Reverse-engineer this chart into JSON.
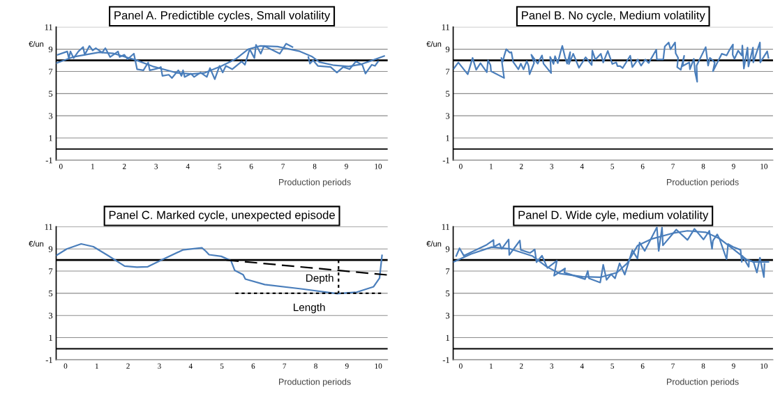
{
  "chart_data": [
    {
      "type": "line",
      "title": "Panel A. Predictible cycles, Small volatility",
      "xlabel": "Production periods",
      "ylabel": "€/un",
      "xlim": [
        -0.15,
        10.3
      ],
      "ylim": [
        -1,
        11
      ],
      "xticks": [
        0,
        1,
        2,
        3,
        4,
        5,
        6,
        7,
        8,
        9,
        10
      ],
      "yticks": [
        -1,
        1,
        3,
        5,
        7,
        9,
        11
      ],
      "grid": "y",
      "ref_lines": [
        {
          "axis": "y",
          "value": 0,
          "color": "#000000"
        },
        {
          "axis": "y",
          "value": 8,
          "color": "#000000"
        }
      ],
      "series": [
        {
          "color": "#4a7ebb",
          "x": [
            -0.1,
            0.2,
            0.25,
            0.3,
            0.4,
            0.55,
            0.7,
            0.75,
            0.9,
            1.0,
            1.1,
            1.3,
            1.4,
            1.55,
            1.8,
            1.85,
            2.0,
            2.1,
            2.3,
            2.4,
            2.6,
            2.75,
            2.8,
            3.1,
            3.15,
            3.2,
            3.4,
            3.5,
            3.7,
            3.8,
            3.85,
            3.9,
            4.1,
            4.2,
            4.4,
            4.6,
            4.7,
            4.85,
            4.9,
            5.0,
            5.1,
            5.2,
            5.4,
            5.7,
            5.8,
            5.95,
            6.1,
            6.15,
            6.3,
            6.4,
            6.9,
            7.1,
            7.3,
            7.6,
            7.8,
            7.85,
            7.95,
            8.1,
            8.5,
            8.7,
            8.9,
            9.1,
            9.3,
            9.5,
            9.6,
            9.8,
            9.9,
            10.0
          ],
          "values": [
            8.5,
            8.8,
            8.2,
            8.8,
            8.2,
            8.8,
            9.2,
            8.5,
            9.3,
            8.9,
            9.1,
            8.7,
            9.1,
            8.3,
            8.8,
            8.3,
            8.5,
            8.1,
            8.6,
            7.2,
            7.1,
            7.8,
            7.1,
            7.3,
            7.4,
            6.6,
            6.7,
            6.4,
            7.1,
            6.6,
            7.1,
            6.5,
            6.8,
            6.5,
            6.9,
            6.5,
            7.3,
            6.3,
            6.7,
            7.5,
            6.9,
            7.5,
            7.2,
            7.9,
            7.6,
            9.0,
            8.2,
            9.4,
            8.6,
            9.3,
            8.6,
            9.5,
            9.2,
            null,
            8.3,
            7.7,
            8.0,
            7.5,
            7.4,
            6.9,
            7.4,
            7.2,
            7.9,
            7.6,
            6.8,
            7.6,
            7.5,
            7.9
          ]
        },
        {
          "color": "#4a7ebb",
          "x": [
            -0.15,
            0.42,
            1.2,
            1.66,
            2.36,
            2.9,
            3.67,
            4.13,
            4.52,
            5.06,
            5.52,
            5.91,
            6.29,
            6.83,
            7.53,
            7.92,
            8.15,
            8.61,
            9.07,
            9.46,
            9.85,
            10.19
          ],
          "values": [
            7.74,
            8.33,
            8.72,
            8.62,
            8.03,
            7.45,
            6.86,
            6.77,
            6.86,
            7.49,
            8.13,
            9.01,
            9.3,
            9.24,
            8.81,
            8.33,
            7.84,
            7.55,
            7.45,
            7.64,
            8.03,
            8.39
          ]
        }
      ]
    },
    {
      "type": "line",
      "title": "Panel B. No cycle, Medium volatility",
      "xlabel": "Production periods",
      "ylabel": "€/un",
      "xlim": [
        -0.25,
        10.3
      ],
      "ylim": [
        -1,
        11
      ],
      "xticks": [
        0,
        1,
        2,
        3,
        4,
        5,
        6,
        7,
        8,
        9,
        10
      ],
      "yticks": [
        -1,
        1,
        3,
        5,
        7,
        9,
        11
      ],
      "grid": "y",
      "ref_lines": [
        {
          "axis": "y",
          "value": 0,
          "color": "#000000"
        },
        {
          "axis": "y",
          "value": 8,
          "color": "#000000"
        }
      ],
      "series": [
        {
          "color": "#4a7ebb",
          "x": [
            -0.23,
            -0.08,
            0.23,
            0.39,
            0.51,
            0.65,
            0.86,
            0.9,
            0.98,
            1.0,
            1.43,
            1.34,
            1.39,
            1.43,
            1.5,
            1.62,
            1.67,
            1.73,
            1.9,
            1.98,
            2.07,
            2.18,
            2.24,
            2.27,
            2.42,
            2.33,
            2.54,
            2.68,
            2.73,
            2.98,
            2.95,
            3.06,
            3.11,
            3.2,
            3.29,
            3.35,
            3.44,
            3.51,
            3.61,
            3.57,
            3.71,
            3.9,
            4.12,
            4.32,
            4.34,
            4.44,
            4.62,
            4.7,
            4.85,
            5.0,
            5.13,
            5.17,
            5.26,
            5.34,
            5.59,
            5.66,
            5.84,
            5.95,
            6.09,
            6.2,
            6.45,
            6.47,
            6.68,
            6.73,
            6.86,
            6.92,
            7.07,
            7.09,
            7.17,
            7.14,
            7.26,
            7.37,
            7.32,
            7.54,
            7.56,
            7.69,
            7.73,
            7.8,
            7.78,
            8.08,
            8.16,
            8.22,
            8.38,
            8.32,
            8.61,
            8.77,
            8.87,
            8.98,
            8.97,
            9.03,
            9.15,
            9.27,
            9.29,
            9.34,
            9.46,
            9.49,
            9.64,
            9.65,
            9.87,
            9.88,
            10.11,
            10.15
          ],
          "values": [
            7.26,
            7.81,
            6.74,
            8.22,
            7.15,
            7.74,
            6.93,
            8.0,
            7.57,
            7.02,
            6.41,
            8.22,
            7.89,
            8.37,
            9.0,
            8.69,
            8.74,
            7.85,
            7.19,
            7.7,
            7.19,
            7.93,
            7.48,
            6.74,
            7.76,
            8.5,
            7.7,
            8.44,
            7.7,
            6.85,
            8.31,
            7.67,
            8.37,
            7.74,
            8.74,
            9.3,
            8.28,
            7.7,
            8.74,
            7.67,
            8.59,
            7.33,
            8.28,
            7.57,
            8.87,
            8.07,
            8.59,
            7.81,
            8.85,
            7.67,
            7.81,
            7.48,
            7.48,
            7.3,
            8.41,
            7.39,
            8.07,
            7.52,
            8.07,
            7.76,
            8.96,
            8.07,
            8.07,
            9.24,
            9.61,
            9.0,
            9.61,
            8.63,
            8.22,
            7.39,
            7.15,
            8.41,
            7.48,
            7.81,
            7.2,
            8.13,
            6.93,
            6.07,
            7.52,
            9.19,
            7.52,
            8.22,
            7.81,
            7.02,
            8.59,
            8.44,
            8.96,
            9.43,
            8.5,
            8.13,
            8.87,
            8.44,
            9.33,
            7.26,
            9.15,
            7.44,
            9.15,
            7.81,
            9.61,
            7.81,
            8.81,
            8.22
          ]
        }
      ]
    },
    {
      "type": "line",
      "title": "Panel C. Marked cycle, unexpected episode",
      "xlabel": "Production periods",
      "ylabel": "€/un",
      "xlim": [
        -0.3,
        10.3
      ],
      "ylim": [
        -1,
        11
      ],
      "xticks": [
        0,
        1,
        2,
        3,
        4,
        5,
        6,
        7,
        8,
        9,
        10
      ],
      "yticks": [
        -1,
        1,
        3,
        5,
        7,
        9,
        11
      ],
      "grid": "y",
      "ref_lines": [
        {
          "axis": "y",
          "value": 0,
          "color": "#000000"
        },
        {
          "axis": "y",
          "value": 8,
          "color": "#000000"
        }
      ],
      "series": [
        {
          "color": "#4a7ebb",
          "x": [
            -0.29,
            0.04,
            0.5,
            0.89,
            1.35,
            1.89,
            2.28,
            2.63,
            3.05,
            3.75,
            4.36,
            4.48,
            4.59,
            4.98,
            5.29,
            5.41,
            5.68,
            5.75,
            6.37,
            7.53,
            8.69,
            9.31,
            9.85,
            10.04,
            10.12
          ],
          "values": [
            8.42,
            9.0,
            9.45,
            9.2,
            8.42,
            7.45,
            7.35,
            7.39,
            7.98,
            8.91,
            9.1,
            8.81,
            8.48,
            8.33,
            7.94,
            7.06,
            6.67,
            6.28,
            5.79,
            5.4,
            4.97,
            5.1,
            5.59,
            6.37,
            8.42
          ]
        },
        {
          "color": "#000000",
          "line_style": "dashed",
          "x": [
            5.14,
            10.3
          ],
          "values": [
            8.0,
            6.65
          ]
        },
        {
          "name": "Depth",
          "color": "#000000",
          "line_style": "dotted",
          "x": [
            8.73,
            8.73
          ],
          "values": [
            8.0,
            5.0
          ]
        },
        {
          "name": "Length",
          "color": "#000000",
          "line_style": "dotted",
          "x": [
            5.43,
            10.15
          ],
          "values": [
            5.0,
            5.0
          ]
        }
      ]
    },
    {
      "type": "line",
      "title": "Panel D. Wide cyle, medium volatility",
      "xlabel": "Production periods",
      "ylabel": "€/un",
      "xlim": [
        -0.25,
        10.3
      ],
      "ylim": [
        -1,
        11
      ],
      "xticks": [
        0,
        1,
        2,
        3,
        4,
        5,
        6,
        7,
        8,
        9,
        10
      ],
      "yticks": [
        -1,
        1,
        3,
        5,
        7,
        9,
        11
      ],
      "grid": "y",
      "ref_lines": [
        {
          "axis": "y",
          "value": 0,
          "color": "#000000"
        },
        {
          "axis": "y",
          "value": 8,
          "color": "#000000"
        }
      ],
      "series": [
        {
          "color": "#4a7ebb",
          "x": [
            -0.15,
            -0.04,
            0.1,
            0.86,
            1.08,
            1.09,
            1.28,
            1.35,
            1.58,
            1.6,
            1.95,
            1.98,
            2.29,
            2.44,
            2.5,
            2.68,
            2.86,
            3.17,
            3.08,
            3.44,
            3.42,
            4.1,
            4.19,
            4.23,
            4.6,
            4.7,
            4.81,
            4.96,
            5.09,
            5.24,
            5.41,
            5.66,
            5.83,
            5.9,
            6.07,
            6.47,
            6.53,
            6.64,
            6.67,
            7.11,
            7.48,
            7.71,
            8.01,
            8.2,
            8.29,
            8.32,
            8.46,
            8.53,
            8.77,
            8.82,
            8.98,
            9.23,
            9.27,
            9.29,
            9.5,
            9.51,
            9.66,
            9.77,
            9.87,
            10.0,
            10.02
          ],
          "values": [
            8.36,
            9.06,
            8.39,
            9.38,
            9.81,
            9.19,
            9.47,
            9.01,
            9.85,
            8.45,
            9.75,
            8.91,
            8.64,
            8.95,
            7.8,
            8.39,
            7.28,
            7.93,
            6.59,
            7.24,
            6.87,
            6.27,
            7.01,
            6.34,
            5.97,
            7.57,
            6.21,
            6.72,
            6.34,
            7.7,
            6.68,
            8.88,
            8.13,
            9.57,
            8.82,
            10.95,
            8.82,
            10.93,
            9.32,
            10.74,
            9.81,
            10.81,
            9.85,
            10.63,
            9.01,
            9.75,
            10.31,
            9.94,
            8.08,
            9.44,
            9.19,
            8.91,
            7.83,
            8.36,
            7.39,
            7.98,
            7.83,
            6.87,
            8.21,
            6.46,
            7.65
          ]
        },
        {
          "color": "#4a7ebb",
          "x": [
            -0.23,
            0.34,
            1.02,
            1.62,
            2.37,
            2.82,
            3.27,
            4.02,
            4.62,
            5.15,
            5.49,
            5.83,
            6.28,
            7.03,
            7.48,
            8.08,
            8.53,
            8.98,
            9.44,
            9.66,
            10.15
          ],
          "values": [
            7.83,
            8.54,
            9.16,
            9.01,
            8.35,
            7.42,
            6.77,
            6.49,
            6.45,
            6.86,
            7.7,
            9.29,
            9.88,
            10.44,
            10.63,
            10.5,
            9.94,
            9.01,
            8.02,
            7.83,
            7.83
          ]
        }
      ]
    }
  ]
}
